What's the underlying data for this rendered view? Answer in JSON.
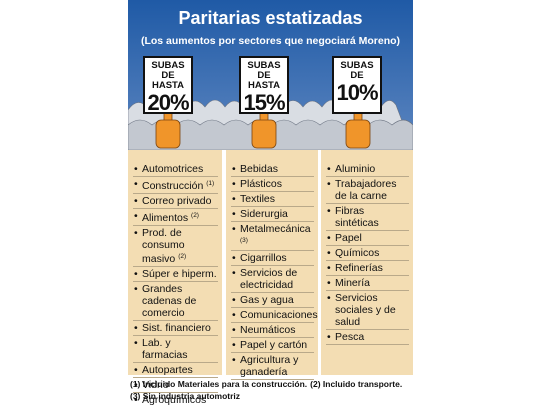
{
  "header": {
    "title": "Paritarias estatizadas",
    "subtitle": "(Los aumentos por sectores que negociará Moreno)"
  },
  "columns": [
    {
      "sign_top": "SUBAS DE HASTA",
      "sign_value": "20%",
      "items": [
        {
          "text": "Automotrices"
        },
        {
          "text": "Construcción",
          "note": "(1)"
        },
        {
          "text": "Correo privado"
        },
        {
          "text": "Alimentos",
          "note": "(2)"
        },
        {
          "text": "Prod. de consumo masivo",
          "note": "(2)"
        },
        {
          "text": "Súper e hiperm."
        },
        {
          "text": "Grandes cadenas de comercio"
        },
        {
          "text": "Sist. financiero"
        },
        {
          "text": "Lab. y farmacias"
        },
        {
          "text": "Autopartes"
        },
        {
          "text": "Vidrio"
        },
        {
          "text": "Agroquímicos"
        }
      ]
    },
    {
      "sign_top": "SUBAS DE HASTA",
      "sign_value": "15%",
      "items": [
        {
          "text": "Bebidas"
        },
        {
          "text": "Plásticos"
        },
        {
          "text": "Textiles"
        },
        {
          "text": "Siderurgia"
        },
        {
          "text": "Metalmecánica",
          "note": "(3)"
        },
        {
          "text": "Cigarrillos"
        },
        {
          "text": "Servicios de electricidad"
        },
        {
          "text": "Gas y agua"
        },
        {
          "text": "Comunicaciones"
        },
        {
          "text": "Neumáticos"
        },
        {
          "text": "Papel y cartón"
        },
        {
          "text": "Agricultura y ganadería"
        }
      ]
    },
    {
      "sign_top": "SUBAS DE",
      "sign_value": "10%",
      "items": [
        {
          "text": "Aluminio"
        },
        {
          "text": "Trabajadores de la carne"
        },
        {
          "text": "Fibras sintéticas"
        },
        {
          "text": "Papel"
        },
        {
          "text": "Químicos"
        },
        {
          "text": "Refinerías"
        },
        {
          "text": "Minería"
        },
        {
          "text": "Servicios sociales y de salud"
        },
        {
          "text": "Pesca"
        }
      ]
    }
  ],
  "footnotes": [
    [
      "(1) Incluido Materiales para la construcción.",
      "(2) Incluido transporte."
    ],
    [
      "(3) Sin industria automotriz"
    ]
  ]
}
